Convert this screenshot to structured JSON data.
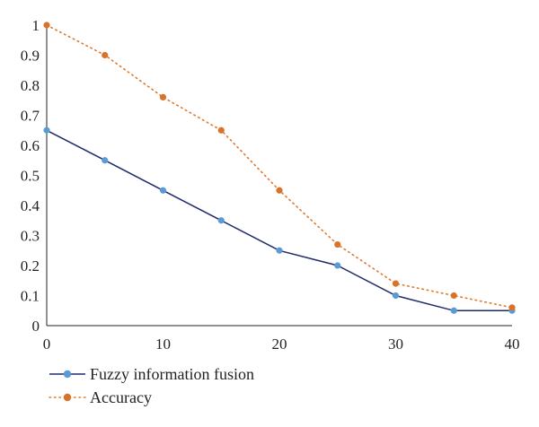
{
  "chart_data": {
    "type": "line",
    "x": [
      0,
      5,
      10,
      15,
      20,
      25,
      30,
      35,
      40
    ],
    "xlim": [
      0,
      40
    ],
    "ylim": [
      0,
      1
    ],
    "x_ticks": [
      "0",
      "10",
      "20",
      "30",
      "40"
    ],
    "y_ticks": [
      "0",
      "0.1",
      "0.2",
      "0.3",
      "0.4",
      "0.5",
      "0.6",
      "0.7",
      "0.8",
      "0.9",
      "1"
    ],
    "grid": false,
    "legend_position": "bottom-left",
    "series": [
      {
        "name": "Fuzzy information fusion",
        "values": [
          0.65,
          0.55,
          0.45,
          0.35,
          0.25,
          0.2,
          0.1,
          0.05,
          0.05
        ],
        "line_color": "#1f2a6b",
        "marker_color": "#5b9bd5",
        "line_style": "solid"
      },
      {
        "name": "Accuracy",
        "values": [
          1.0,
          0.9,
          0.76,
          0.65,
          0.45,
          0.27,
          0.14,
          0.1,
          0.06
        ],
        "line_color": "#e0792c",
        "marker_color": "#d9732a",
        "line_style": "dotted"
      }
    ]
  }
}
